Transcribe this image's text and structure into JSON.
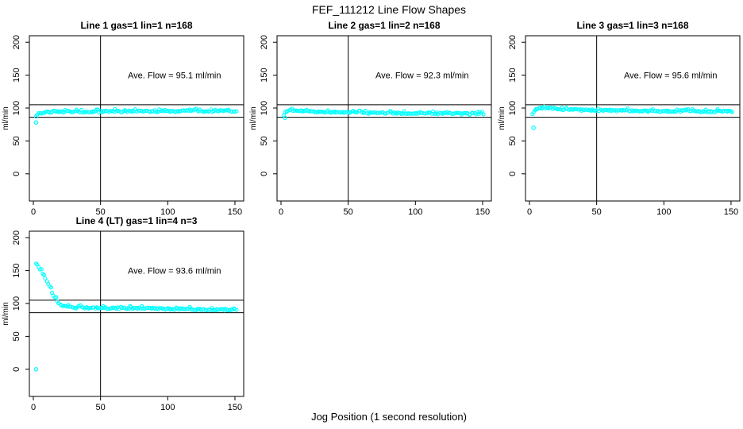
{
  "figure": {
    "title": "FEF_111212  Line Flow Shapes",
    "xlabel": "Jog Position (1 second resolution)",
    "ylabel": "ml/min"
  },
  "chart_data": {
    "type": "scatter",
    "title": "FEF_111212  Line Flow Shapes",
    "xlabel": "Jog Position (1 second resolution)",
    "ylabel": "ml/min",
    "xlim": [
      0,
      150
    ],
    "ylim": [
      0,
      200
    ],
    "x_ticks": [
      0,
      50,
      100,
      150
    ],
    "y_ticks": [
      0,
      50,
      100,
      150,
      200
    ],
    "grid": false,
    "legend": "none",
    "point_color": "#00FFFF",
    "axis_color": "#000000",
    "reference_lines": {
      "horizontal": [
        105,
        86
      ],
      "vertical": [
        50
      ]
    },
    "subplots": [
      {
        "title": "Line 1 gas=1 lin=1 n=168",
        "annotation": "Ave. Flow =  95.1  ml/min",
        "ave_flow_ml_min": 95.1,
        "n": 168,
        "outliers": [
          [
            2,
            78
          ]
        ],
        "keypoints": [
          [
            2,
            86
          ],
          [
            3,
            90
          ],
          [
            5,
            92.5
          ],
          [
            8,
            93.5
          ],
          [
            15,
            94
          ],
          [
            40,
            94.5
          ],
          [
            80,
            95
          ],
          [
            120,
            95.5
          ],
          [
            151,
            95.5
          ]
        ]
      },
      {
        "title": "Line 2 gas=1 lin=2 n=168",
        "annotation": "Ave. Flow =  92.3  ml/min",
        "ave_flow_ml_min": 92.3,
        "n": 168,
        "outliers": [
          [
            3,
            85
          ]
        ],
        "keypoints": [
          [
            2,
            89
          ],
          [
            3,
            93
          ],
          [
            5,
            96
          ],
          [
            8,
            96.5
          ],
          [
            15,
            95.5
          ],
          [
            30,
            94
          ],
          [
            60,
            92.5
          ],
          [
            100,
            92
          ],
          [
            151,
            91
          ]
        ]
      },
      {
        "title": "Line 3 gas=1 lin=3 n=168",
        "annotation": "Ave. Flow =  95.6  ml/min",
        "ave_flow_ml_min": 95.6,
        "n": 168,
        "outliers": [
          [
            3,
            70
          ]
        ],
        "keypoints": [
          [
            2,
            90
          ],
          [
            4,
            96
          ],
          [
            7,
            100
          ],
          [
            12,
            99.5
          ],
          [
            25,
            98
          ],
          [
            50,
            96.5
          ],
          [
            90,
            95.5
          ],
          [
            151,
            94.5
          ]
        ]
      },
      {
        "title": "Line 4 (LT) gas=1 lin=4 n=3",
        "annotation": "Ave. Flow =  93.6  ml/min",
        "ave_flow_ml_min": 93.6,
        "n": 3,
        "outliers": [
          [
            2,
            0
          ]
        ],
        "keypoints": [
          [
            2,
            160
          ],
          [
            3,
            158
          ],
          [
            5,
            152
          ],
          [
            7,
            145
          ],
          [
            9,
            137
          ],
          [
            11,
            129
          ],
          [
            13,
            121
          ],
          [
            15,
            113
          ],
          [
            17,
            106
          ],
          [
            19,
            101
          ],
          [
            21,
            98
          ],
          [
            24,
            95.5
          ],
          [
            28,
            94
          ],
          [
            35,
            93.5
          ],
          [
            50,
            93
          ],
          [
            80,
            92.5
          ],
          [
            110,
            91.5
          ],
          [
            151,
            90
          ]
        ]
      }
    ]
  }
}
